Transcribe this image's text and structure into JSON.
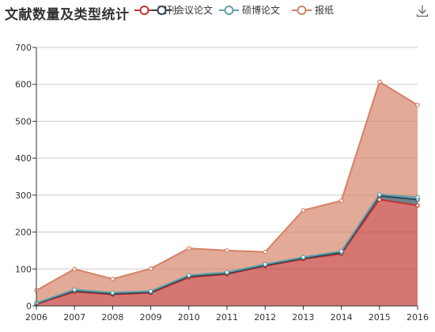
{
  "header": {
    "title": "文献数量及类型统计"
  },
  "legend": {
    "items": [
      {
        "label": "期刊",
        "color": "#c23531"
      },
      {
        "label": "会议论文",
        "color": "#2f4554"
      },
      {
        "label": "硕博论文",
        "color": "#61a0a8"
      },
      {
        "label": "报纸",
        "color": "#d48265"
      }
    ]
  },
  "toolbar": {
    "download_icon": "download-icon"
  },
  "chart_data": {
    "type": "area",
    "stacked": true,
    "title": "文献数量及类型统计",
    "categories": [
      "2006",
      "2007",
      "2008",
      "2009",
      "2010",
      "2011",
      "2012",
      "2013",
      "2014",
      "2015",
      "2016"
    ],
    "ylim": [
      0,
      700
    ],
    "yticks": [
      0,
      100,
      200,
      300,
      400,
      500,
      600,
      700
    ],
    "grid": true,
    "legend_position": "top",
    "series": [
      {
        "name": "期刊",
        "color": "#c23531",
        "values": [
          5,
          38,
          31,
          35,
          77,
          86,
          108,
          127,
          141,
          288,
          272
        ]
      },
      {
        "name": "会议论文",
        "color": "#2f4554",
        "values": [
          1,
          3,
          2,
          2,
          3,
          2,
          2,
          2,
          3,
          10,
          16
        ]
      },
      {
        "name": "硕博论文",
        "color": "#61a0a8",
        "values": [
          2,
          3,
          3,
          3,
          3,
          3,
          3,
          3,
          4,
          4,
          6
        ]
      },
      {
        "name": "报纸",
        "color": "#d48265",
        "values": [
          34,
          56,
          37,
          61,
          73,
          59,
          33,
          127,
          137,
          305,
          250
        ]
      }
    ]
  }
}
